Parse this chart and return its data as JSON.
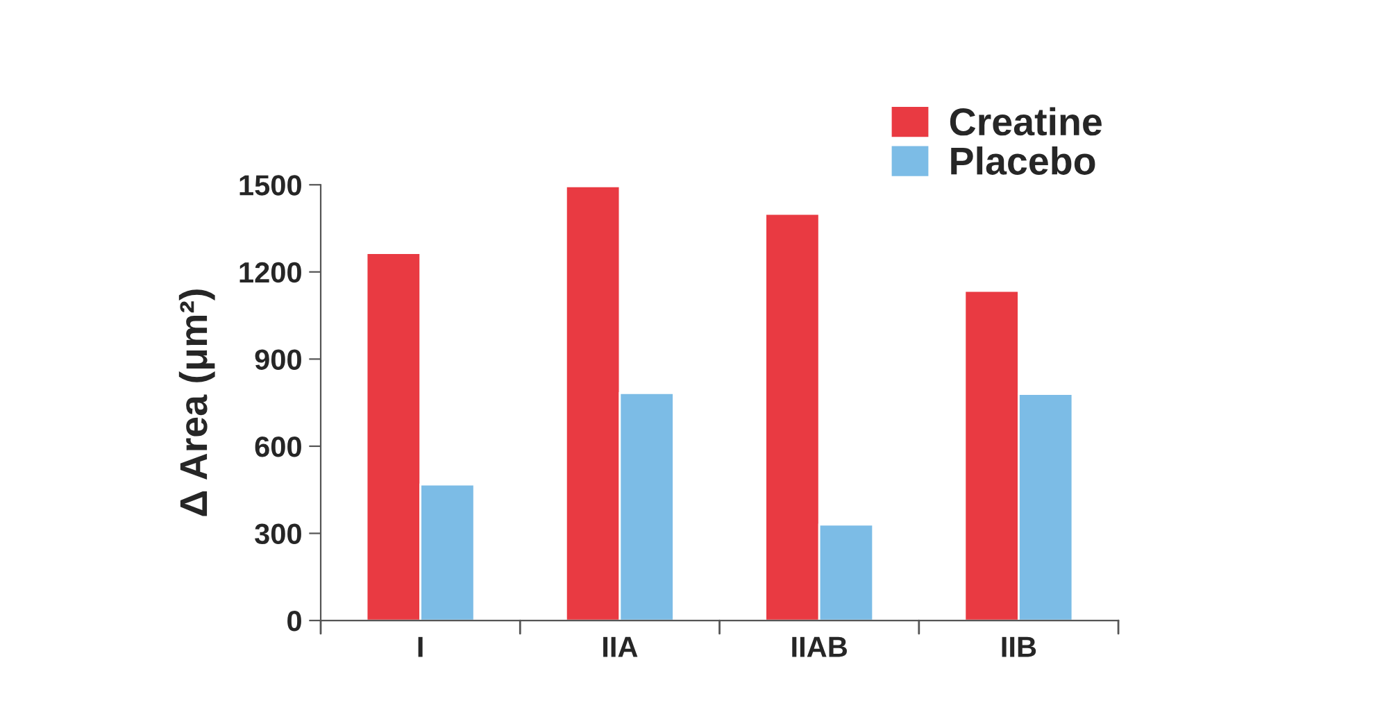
{
  "chart_data": {
    "type": "bar",
    "ylabel": "Δ Area (μm²)",
    "categories": [
      "I",
      "IIA",
      "IIAB",
      "IIB"
    ],
    "series": [
      {
        "name": "Creatine",
        "color": "#e93a42",
        "values": [
          1265,
          1495,
          1400,
          1135
        ]
      },
      {
        "name": "Placebo",
        "color": "#7cbce6",
        "values": [
          468,
          783,
          330,
          780
        ]
      }
    ],
    "ylim": [
      0,
      1500
    ],
    "yticks": [
      0,
      300,
      600,
      900,
      1200,
      1500
    ],
    "grid": false,
    "legend": "top right"
  }
}
